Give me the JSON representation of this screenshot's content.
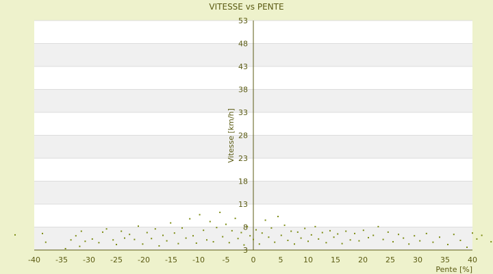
{
  "chart_data": {
    "type": "scatter",
    "title": "VITESSE vs PENTE",
    "xlabel": "Pente [%]",
    "ylabel": "Vitesse [km/h]",
    "xlim": [
      -40,
      40
    ],
    "ylim": [
      3,
      53
    ],
    "x_ticks": [
      -40,
      -35,
      -30,
      -25,
      -20,
      -15,
      -10,
      -5,
      0,
      5,
      10,
      15,
      20,
      25,
      30,
      35,
      40
    ],
    "y_ticks": [
      3,
      8,
      13,
      18,
      23,
      28,
      33,
      38,
      43,
      48,
      53
    ],
    "grid": "alternating horizontal bands",
    "legend": "none",
    "colors": {
      "background": "#eef2cc",
      "plot": "#ffffff",
      "band": "#f0f0f0",
      "axis": "#5a5a12",
      "marker": "#7a8a10",
      "text": "#5a5a12"
    },
    "points": [
      [
        -43.5,
        6.3
      ],
      [
        -38.5,
        6.6
      ],
      [
        -37.9,
        4.7
      ],
      [
        -34.3,
        3.3
      ],
      [
        -33.3,
        5.2
      ],
      [
        -32.4,
        6.1
      ],
      [
        -31.7,
        3.8
      ],
      [
        -31.4,
        7.1
      ],
      [
        -30.7,
        4.9
      ],
      [
        -29.4,
        5.4
      ],
      [
        -28.2,
        4.6
      ],
      [
        -27.5,
        6.9
      ],
      [
        -26.8,
        7.6
      ],
      [
        -25.6,
        5.2
      ],
      [
        -25.0,
        4.2
      ],
      [
        -24.1,
        7.1
      ],
      [
        -23.5,
        5.6
      ],
      [
        -22.6,
        6.4
      ],
      [
        -21.7,
        5.3
      ],
      [
        -21.0,
        8.2
      ],
      [
        -20.2,
        4.3
      ],
      [
        -19.4,
        6.8
      ],
      [
        -18.6,
        5.5
      ],
      [
        -17.9,
        7.6
      ],
      [
        -17.2,
        3.9
      ],
      [
        -16.5,
        6.2
      ],
      [
        -15.8,
        5.0
      ],
      [
        -15.1,
        8.9
      ],
      [
        -14.4,
        6.7
      ],
      [
        -13.7,
        4.4
      ],
      [
        -13.0,
        7.8
      ],
      [
        -12.3,
        5.6
      ],
      [
        -11.6,
        9.8
      ],
      [
        -11.0,
        6.1
      ],
      [
        -10.4,
        4.5
      ],
      [
        -9.8,
        10.7
      ],
      [
        -9.1,
        7.3
      ],
      [
        -8.5,
        5.2
      ],
      [
        -7.9,
        9.2
      ],
      [
        -7.3,
        4.8
      ],
      [
        -6.7,
        7.9
      ],
      [
        -6.1,
        11.2
      ],
      [
        -5.6,
        5.9
      ],
      [
        -5.0,
        8.6
      ],
      [
        -4.4,
        4.6
      ],
      [
        -3.9,
        7.2
      ],
      [
        -3.3,
        9.9
      ],
      [
        -2.8,
        5.5
      ],
      [
        -2.2,
        6.8
      ],
      [
        -1.7,
        4.1
      ],
      [
        -1.1,
        8.1
      ],
      [
        -0.6,
        6.1
      ],
      [
        0.0,
        5.3
      ],
      [
        0.5,
        7.4
      ],
      [
        1.1,
        4.3
      ],
      [
        1.6,
        6.7
      ],
      [
        2.2,
        9.5
      ],
      [
        2.8,
        5.8
      ],
      [
        3.3,
        7.8
      ],
      [
        3.9,
        4.7
      ],
      [
        4.5,
        10.3
      ],
      [
        5.1,
        6.2
      ],
      [
        5.7,
        8.4
      ],
      [
        6.3,
        5.1
      ],
      [
        6.9,
        7.1
      ],
      [
        7.5,
        4.3
      ],
      [
        8.1,
        6.9
      ],
      [
        8.7,
        5.6
      ],
      [
        9.4,
        7.7
      ],
      [
        10.0,
        4.9
      ],
      [
        10.6,
        6.3
      ],
      [
        11.3,
        8.1
      ],
      [
        11.9,
        5.4
      ],
      [
        12.6,
        6.8
      ],
      [
        13.3,
        4.6
      ],
      [
        14.0,
        7.2
      ],
      [
        14.7,
        5.8
      ],
      [
        15.4,
        6.5
      ],
      [
        16.2,
        4.4
      ],
      [
        16.9,
        7.1
      ],
      [
        17.7,
        5.2
      ],
      [
        18.5,
        6.6
      ],
      [
        19.3,
        5.0
      ],
      [
        20.1,
        7.3
      ],
      [
        21.0,
        5.7
      ],
      [
        21.9,
        6.2
      ],
      [
        22.8,
        8.1
      ],
      [
        23.7,
        5.3
      ],
      [
        24.6,
        6.9
      ],
      [
        25.5,
        4.8
      ],
      [
        26.5,
        6.4
      ],
      [
        27.4,
        5.6
      ],
      [
        28.4,
        4.3
      ],
      [
        29.4,
        6.1
      ],
      [
        30.4,
        5.0
      ],
      [
        31.6,
        6.6
      ],
      [
        32.8,
        4.7
      ],
      [
        34.0,
        5.8
      ],
      [
        35.5,
        4.2
      ],
      [
        36.6,
        6.4
      ],
      [
        37.8,
        5.1
      ],
      [
        39.0,
        3.6
      ],
      [
        40.0,
        6.7
      ],
      [
        40.8,
        5.4
      ],
      [
        41.7,
        6.2
      ],
      [
        43.4,
        4.8
      ]
    ]
  }
}
